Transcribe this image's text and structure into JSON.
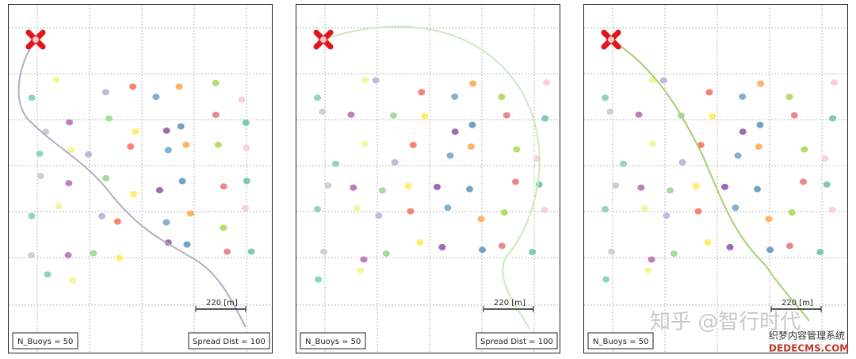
{
  "panels": [
    {
      "scale_label": "220 [m]",
      "n_buoys": "N_Buoys = 50",
      "spread": "Spread Dist = 100"
    },
    {
      "scale_label": "220 [m]",
      "n_buoys": "N_Buoys = 50",
      "spread": "Spread Dist = 100"
    },
    {
      "scale_label": "220 [m]",
      "n_buoys": "N_Buoys = 50"
    }
  ],
  "watermark": {
    "main": "知乎 @智行时代",
    "site_cn": "织梦内容管理系统",
    "site_en": "DEDECMS.COM"
  }
}
